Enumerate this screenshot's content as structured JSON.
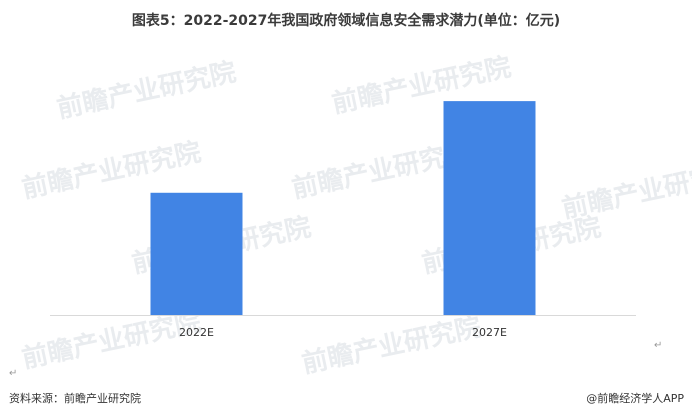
{
  "chart_data": {
    "type": "bar",
    "title": "图表5：2022-2027年我国政府领域信息安全需求潜力(单位：亿元)",
    "categories": [
      "2022E",
      "2027E"
    ],
    "values": [
      100,
      175
    ],
    "ylim": [
      0,
      180
    ],
    "xlabel": "",
    "ylabel": "",
    "grid": false,
    "legend": "none",
    "bar_color": "#4184e4",
    "axis_color": "#d9d9d9"
  },
  "footer": {
    "source": "资料来源：前瞻产业研究院",
    "brand": "@前瞻经济学人APP"
  },
  "watermark": {
    "text": "前瞻产业研究院"
  }
}
